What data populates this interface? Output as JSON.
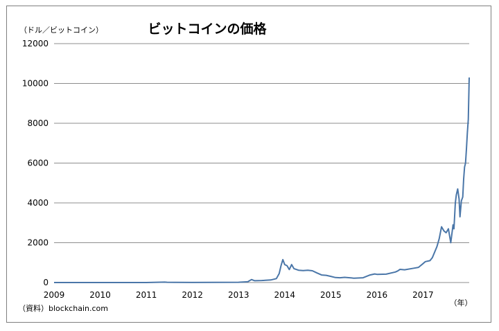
{
  "chart_data": {
    "type": "line",
    "title": "ビットコインの価格",
    "ylabel": "（ドル／ビットコイン）",
    "xlabel": "（年）",
    "source": "（資料）blockchain.com",
    "ylim": [
      0,
      12000
    ],
    "xlim": [
      2009,
      2018
    ],
    "yticks": [
      "0",
      "2000",
      "4000",
      "6000",
      "8000",
      "10000",
      "12000"
    ],
    "xticks": [
      "2009",
      "2010",
      "2011",
      "2012",
      "2013",
      "2014",
      "2015",
      "2016",
      "2017"
    ],
    "grid": true,
    "line_color": "#4a76a8",
    "x": [
      2009.0,
      2010.0,
      2010.5,
      2011.0,
      2011.4,
      2011.45,
      2011.6,
      2012.0,
      2012.5,
      2013.0,
      2013.2,
      2013.28,
      2013.35,
      2013.5,
      2013.7,
      2013.82,
      2013.88,
      2013.92,
      2013.96,
      2014.0,
      2014.05,
      2014.1,
      2014.15,
      2014.2,
      2014.3,
      2014.4,
      2014.5,
      2014.6,
      2014.7,
      2014.8,
      2014.9,
      2015.0,
      2015.1,
      2015.2,
      2015.3,
      2015.5,
      2015.7,
      2015.85,
      2015.95,
      2016.0,
      2016.2,
      2016.4,
      2016.45,
      2016.5,
      2016.6,
      2016.8,
      2016.9,
      2017.0,
      2017.05,
      2017.15,
      2017.2,
      2017.3,
      2017.35,
      2017.4,
      2017.45,
      2017.5,
      2017.55,
      2017.6,
      2017.65,
      2017.67,
      2017.7,
      2017.72,
      2017.75,
      2017.78,
      2017.8,
      2017.83,
      2017.86,
      2017.88,
      2017.9,
      2017.92,
      2017.94,
      2017.96,
      2017.98,
      2018.0
    ],
    "values": [
      0,
      0,
      0,
      1,
      20,
      15,
      10,
      5,
      8,
      15,
      40,
      150,
      90,
      100,
      130,
      200,
      450,
      850,
      1150,
      900,
      850,
      650,
      900,
      700,
      620,
      600,
      620,
      590,
      480,
      380,
      360,
      310,
      250,
      240,
      260,
      220,
      240,
      380,
      430,
      410,
      420,
      530,
      580,
      660,
      640,
      720,
      760,
      950,
      1050,
      1100,
      1250,
      1800,
      2200,
      2800,
      2600,
      2500,
      2700,
      2000,
      2900,
      2700,
      4000,
      4400,
      4700,
      4200,
      3300,
      4100,
      4300,
      5200,
      5800,
      6000,
      6700,
      7500,
      8200,
      10300
    ]
  }
}
